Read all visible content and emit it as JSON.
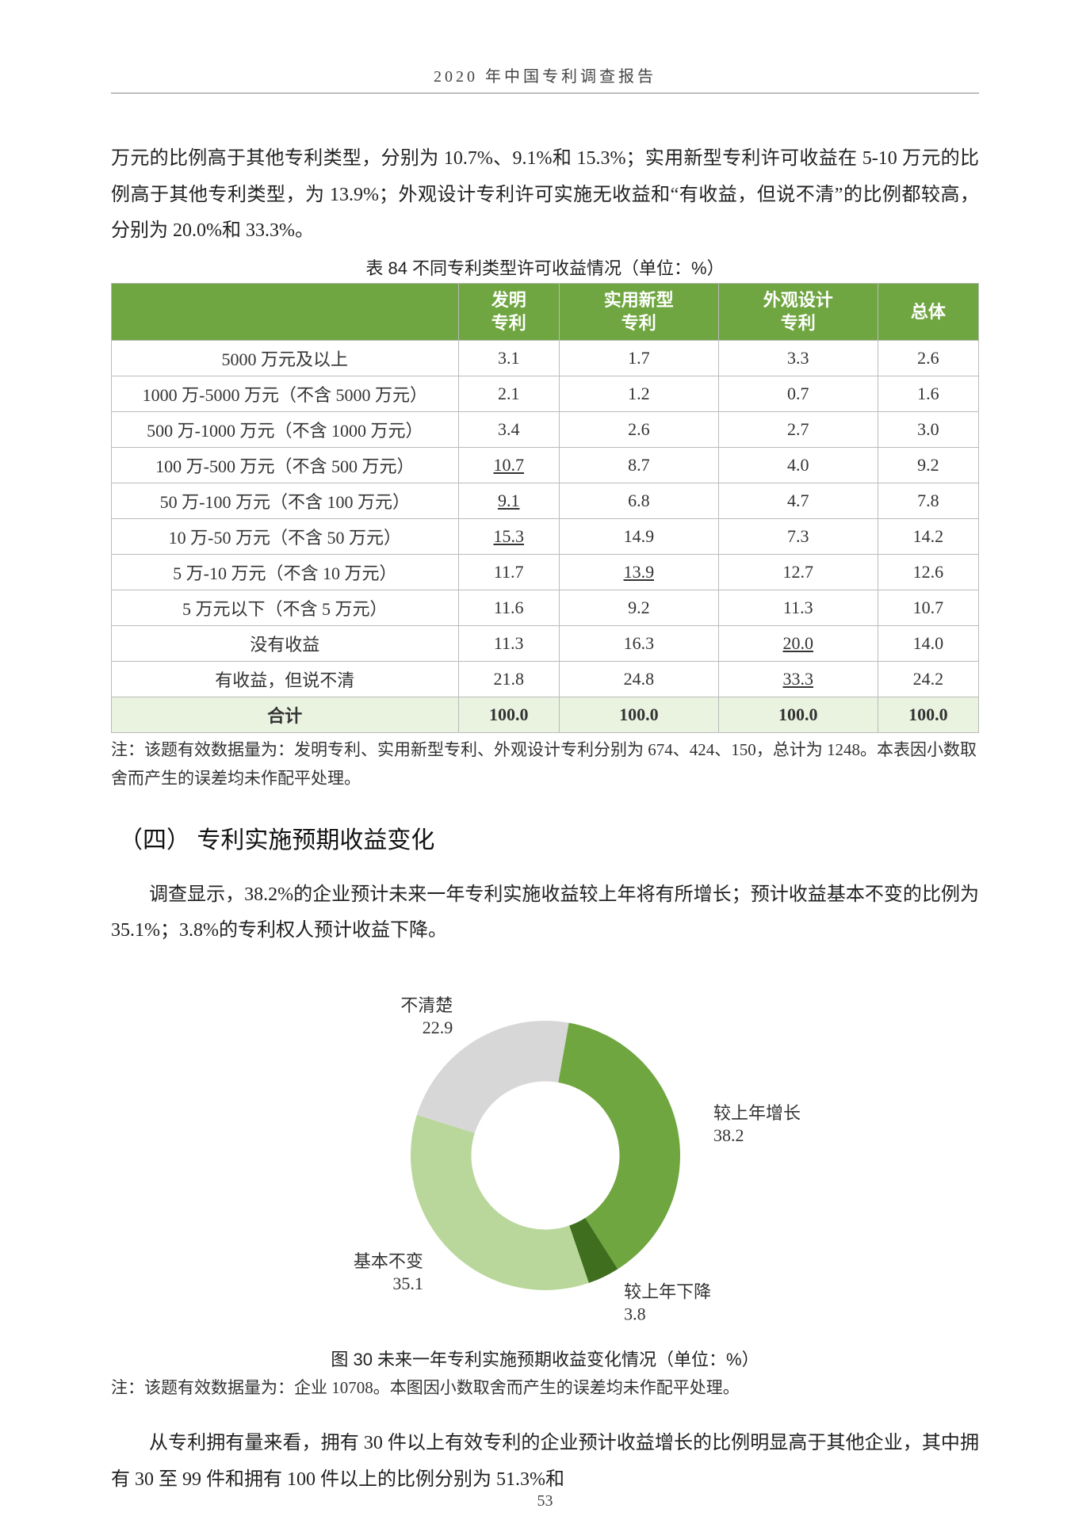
{
  "runningTitle": "2020 年中国专利调查报告",
  "pageNumber": "53",
  "para1": "万元的比例高于其他专利类型，分别为 10.7%、9.1%和 15.3%；实用新型专利许可收益在 5-10 万元的比例高于其他专利类型，为 13.9%；外观设计专利许可实施无收益和“有收益，但说不清”的比例都较高，分别为 20.0%和 33.3%。",
  "table": {
    "caption": "表 84  不同专利类型许可收益情况（单位：%）",
    "headers": [
      "",
      "发明\n专利",
      "实用新型\n专利",
      "外观设计\n专利",
      "总体"
    ],
    "header_bg": "#70a641",
    "header_fg": "#ffffff",
    "total_bg": "#eaf2e0",
    "border_color": "#bbbbbb",
    "rows": [
      {
        "label": "5000 万元及以上",
        "v": [
          "3.1",
          "1.7",
          "3.3",
          "2.6"
        ],
        "u": [
          false,
          false,
          false,
          false
        ]
      },
      {
        "label": "1000 万-5000 万元（不含 5000 万元）",
        "v": [
          "2.1",
          "1.2",
          "0.7",
          "1.6"
        ],
        "u": [
          false,
          false,
          false,
          false
        ]
      },
      {
        "label": "500 万-1000 万元（不含 1000 万元）",
        "v": [
          "3.4",
          "2.6",
          "2.7",
          "3.0"
        ],
        "u": [
          false,
          false,
          false,
          false
        ]
      },
      {
        "label": "100 万-500 万元（不含 500 万元）",
        "v": [
          "10.7",
          "8.7",
          "4.0",
          "9.2"
        ],
        "u": [
          true,
          false,
          false,
          false
        ]
      },
      {
        "label": "50 万-100 万元（不含 100 万元）",
        "v": [
          "9.1",
          "6.8",
          "4.7",
          "7.8"
        ],
        "u": [
          true,
          false,
          false,
          false
        ]
      },
      {
        "label": "10 万-50 万元（不含 50 万元）",
        "v": [
          "15.3",
          "14.9",
          "7.3",
          "14.2"
        ],
        "u": [
          true,
          false,
          false,
          false
        ]
      },
      {
        "label": "5 万-10 万元（不含 10 万元）",
        "v": [
          "11.7",
          "13.9",
          "12.7",
          "12.6"
        ],
        "u": [
          false,
          true,
          false,
          false
        ]
      },
      {
        "label": "5 万元以下（不含 5 万元）",
        "v": [
          "11.6",
          "9.2",
          "11.3",
          "10.7"
        ],
        "u": [
          false,
          false,
          false,
          false
        ]
      },
      {
        "label": "没有收益",
        "v": [
          "11.3",
          "16.3",
          "20.0",
          "14.0"
        ],
        "u": [
          false,
          false,
          true,
          false
        ]
      },
      {
        "label": "有收益，但说不清",
        "v": [
          "21.8",
          "24.8",
          "33.3",
          "24.2"
        ],
        "u": [
          false,
          false,
          true,
          false
        ]
      }
    ],
    "total": {
      "label": "合计",
      "v": [
        "100.0",
        "100.0",
        "100.0",
        "100.0"
      ]
    }
  },
  "tableNote": "注：该题有效数据量为：发明专利、实用新型专利、外观设计专利分别为 674、424、150，总计为 1248。本表因小数取舍而产生的误差均未作配平处理。",
  "sectionHeading": "（四） 专利实施预期收益变化",
  "para2": "调查显示，38.2%的企业预计未来一年专利实施收益较上年将有所增长；预计收益基本不变的比例为 35.1%；3.8%的专利权人预计收益下降。",
  "donut": {
    "type": "donut",
    "caption": "图 30  未来一年专利实施预期收益变化情况（单位：%）",
    "inner_ratio": 0.55,
    "background": "#ffffff",
    "start_angle_deg": -80,
    "slices": [
      {
        "name": "较上年增长",
        "value": 38.2,
        "color": "#6fa63f",
        "label_side": "right"
      },
      {
        "name": "较上年下降",
        "value": 3.8,
        "color": "#3f6e1e",
        "label_side": "right"
      },
      {
        "name": "基本不变",
        "value": 35.1,
        "color": "#b9d79a",
        "label_side": "left"
      },
      {
        "name": "不清楚",
        "value": 22.9,
        "color": "#d7d7d7",
        "label_side": "left"
      }
    ]
  },
  "donutNote": "注：该题有效数据量为：企业 10708。本图因小数取舍而产生的误差均未作配平处理。",
  "para3": "从专利拥有量来看，拥有 30 件以上有效专利的企业预计收益增长的比例明显高于其他企业，其中拥有 30 至 99 件和拥有 100 件以上的比例分别为 51.3%和"
}
